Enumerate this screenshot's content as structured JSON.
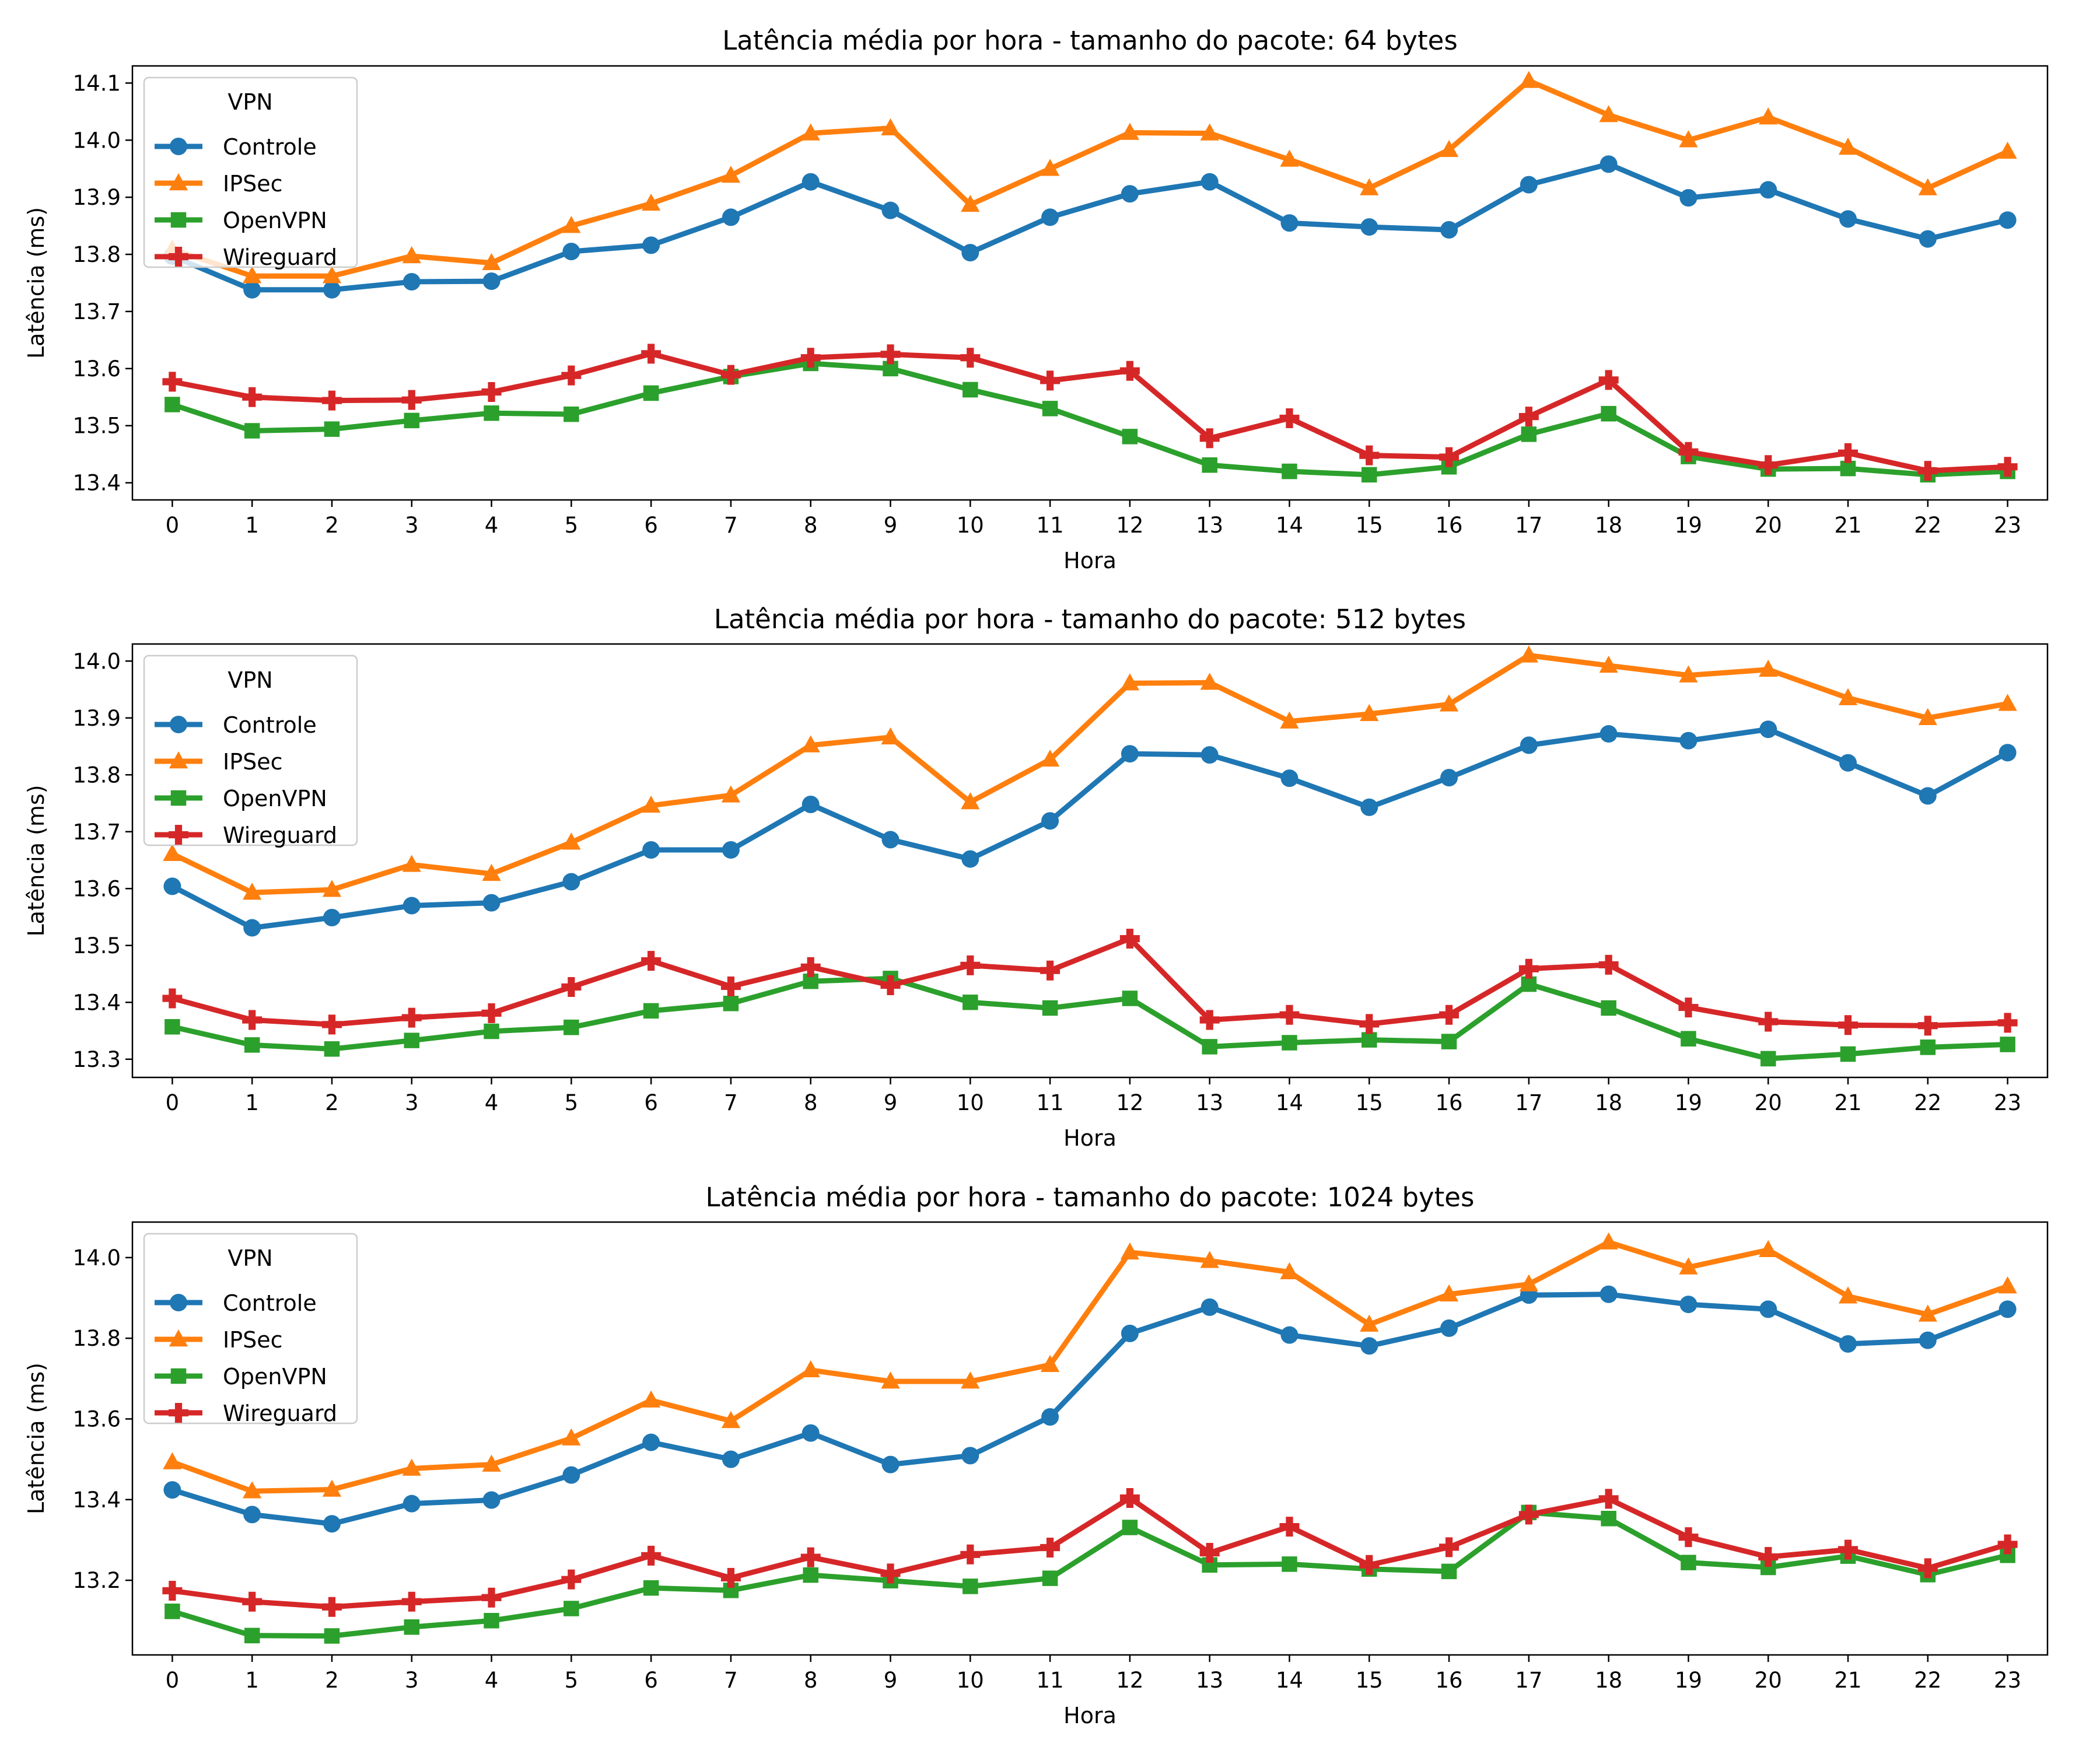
{
  "chart_data": [
    {
      "type": "line",
      "title": "Latência média por hora - tamanho do pacote: 64 bytes",
      "xlabel": "Hora",
      "ylabel": "Latência (ms)",
      "x": [
        0,
        1,
        2,
        3,
        4,
        5,
        6,
        7,
        8,
        9,
        10,
        11,
        12,
        13,
        14,
        15,
        16,
        17,
        18,
        19,
        20,
        21,
        22,
        23
      ],
      "xlim": [
        -0.5,
        23.5
      ],
      "ylim": [
        13.37,
        14.13
      ],
      "yticks": [
        13.4,
        13.5,
        13.6,
        13.7,
        13.8,
        13.9,
        14.0,
        14.1
      ],
      "legend": {
        "title": "VPN",
        "placement": "top-left"
      },
      "grid": false,
      "series": [
        {
          "name": "Controle",
          "color": "#1f77b4",
          "marker": "circle",
          "values": [
            13.797,
            13.738,
            13.738,
            13.752,
            13.753,
            13.805,
            13.816,
            13.865,
            13.927,
            13.877,
            13.803,
            13.865,
            13.906,
            13.927,
            13.855,
            13.848,
            13.843,
            13.922,
            13.958,
            13.899,
            13.913,
            13.862,
            13.827,
            13.86
          ]
        },
        {
          "name": "IPSec",
          "color": "#ff7f0e",
          "marker": "triangle",
          "values": [
            13.809,
            13.762,
            13.762,
            13.797,
            13.785,
            13.85,
            13.889,
            13.938,
            14.012,
            14.021,
            13.887,
            13.95,
            14.013,
            14.012,
            13.966,
            13.916,
            13.983,
            14.104,
            14.044,
            14.0,
            14.04,
            13.987,
            13.916,
            13.98
          ]
        },
        {
          "name": "OpenVPN",
          "color": "#2ca02c",
          "marker": "square",
          "values": [
            13.537,
            13.491,
            13.494,
            13.509,
            13.522,
            13.52,
            13.557,
            13.586,
            13.609,
            13.6,
            13.563,
            13.53,
            13.481,
            13.431,
            13.42,
            13.414,
            13.428,
            13.485,
            13.521,
            13.446,
            13.424,
            13.425,
            13.414,
            13.42
          ]
        },
        {
          "name": "Wireguard",
          "color": "#d62728",
          "marker": "plus",
          "values": [
            13.577,
            13.55,
            13.544,
            13.545,
            13.559,
            13.588,
            13.626,
            13.589,
            13.619,
            13.625,
            13.619,
            13.579,
            13.596,
            13.478,
            13.513,
            13.448,
            13.445,
            13.516,
            13.58,
            13.454,
            13.431,
            13.452,
            13.421,
            13.428
          ]
        }
      ]
    },
    {
      "type": "line",
      "title": "Latência média por hora - tamanho do pacote: 512 bytes",
      "xlabel": "Hora",
      "ylabel": "Latência (ms)",
      "x": [
        0,
        1,
        2,
        3,
        4,
        5,
        6,
        7,
        8,
        9,
        10,
        11,
        12,
        13,
        14,
        15,
        16,
        17,
        18,
        19,
        20,
        21,
        22,
        23
      ],
      "xlim": [
        -0.5,
        23.5
      ],
      "ylim": [
        13.268,
        14.03
      ],
      "yticks": [
        13.3,
        13.4,
        13.5,
        13.6,
        13.7,
        13.8,
        13.9,
        14.0
      ],
      "legend": {
        "title": "VPN",
        "placement": "top-left"
      },
      "grid": false,
      "series": [
        {
          "name": "Controle",
          "color": "#1f77b4",
          "marker": "circle",
          "values": [
            13.604,
            13.531,
            13.549,
            13.57,
            13.575,
            13.612,
            13.668,
            13.668,
            13.748,
            13.686,
            13.652,
            13.719,
            13.837,
            13.835,
            13.794,
            13.743,
            13.795,
            13.852,
            13.872,
            13.86,
            13.88,
            13.821,
            13.763,
            13.839
          ]
        },
        {
          "name": "IPSec",
          "color": "#ff7f0e",
          "marker": "triangle",
          "values": [
            13.661,
            13.593,
            13.598,
            13.642,
            13.626,
            13.681,
            13.746,
            13.764,
            13.852,
            13.866,
            13.752,
            13.827,
            13.961,
            13.962,
            13.894,
            13.907,
            13.924,
            14.01,
            13.992,
            13.975,
            13.985,
            13.935,
            13.9,
            13.925
          ]
        },
        {
          "name": "OpenVPN",
          "color": "#2ca02c",
          "marker": "square",
          "values": [
            13.357,
            13.325,
            13.318,
            13.333,
            13.349,
            13.356,
            13.385,
            13.398,
            13.437,
            13.442,
            13.4,
            13.39,
            13.407,
            13.322,
            13.329,
            13.334,
            13.331,
            13.432,
            13.39,
            13.336,
            13.301,
            13.309,
            13.321,
            13.326
          ]
        },
        {
          "name": "Wireguard",
          "color": "#d62728",
          "marker": "plus",
          "values": [
            13.407,
            13.369,
            13.361,
            13.373,
            13.381,
            13.427,
            13.473,
            13.428,
            13.462,
            13.43,
            13.465,
            13.456,
            13.512,
            13.369,
            13.378,
            13.362,
            13.378,
            13.459,
            13.466,
            13.391,
            13.366,
            13.36,
            13.359,
            13.364
          ]
        }
      ]
    },
    {
      "type": "line",
      "title": "Latência média por hora - tamanho do pacote: 1024 bytes",
      "xlabel": "Hora",
      "ylabel": "Latência (ms)",
      "x": [
        0,
        1,
        2,
        3,
        4,
        5,
        6,
        7,
        8,
        9,
        10,
        11,
        12,
        13,
        14,
        15,
        16,
        17,
        18,
        19,
        20,
        21,
        22,
        23
      ],
      "xlim": [
        -0.5,
        23.5
      ],
      "ylim": [
        13.015,
        14.088
      ],
      "yticks": [
        13.2,
        13.4,
        13.6,
        13.8,
        14.0
      ],
      "legend": {
        "title": "VPN",
        "placement": "top-left"
      },
      "grid": false,
      "series": [
        {
          "name": "Controle",
          "color": "#1f77b4",
          "marker": "circle",
          "values": [
            13.424,
            13.363,
            13.34,
            13.39,
            13.399,
            13.461,
            13.542,
            13.5,
            13.565,
            13.487,
            13.509,
            13.605,
            13.812,
            13.877,
            13.808,
            13.781,
            13.825,
            13.907,
            13.909,
            13.884,
            13.872,
            13.786,
            13.795,
            13.872
          ]
        },
        {
          "name": "IPSec",
          "color": "#ff7f0e",
          "marker": "triangle",
          "values": [
            13.493,
            13.421,
            13.425,
            13.477,
            13.487,
            13.552,
            13.646,
            13.595,
            13.721,
            13.693,
            13.693,
            13.734,
            14.013,
            13.992,
            13.964,
            13.834,
            13.909,
            13.934,
            14.038,
            13.976,
            14.019,
            13.904,
            13.859,
            13.929
          ]
        },
        {
          "name": "OpenVPN",
          "color": "#2ca02c",
          "marker": "square",
          "values": [
            13.123,
            13.063,
            13.062,
            13.084,
            13.1,
            13.13,
            13.181,
            13.175,
            13.213,
            13.199,
            13.185,
            13.205,
            13.331,
            13.238,
            13.24,
            13.228,
            13.222,
            13.368,
            13.353,
            13.244,
            13.232,
            13.26,
            13.214,
            13.262
          ]
        },
        {
          "name": "Wireguard",
          "color": "#d62728",
          "marker": "plus",
          "values": [
            13.174,
            13.147,
            13.134,
            13.147,
            13.157,
            13.202,
            13.261,
            13.206,
            13.257,
            13.217,
            13.264,
            13.281,
            13.404,
            13.268,
            13.333,
            13.238,
            13.282,
            13.363,
            13.402,
            13.307,
            13.258,
            13.276,
            13.23,
            13.289
          ]
        }
      ]
    }
  ]
}
